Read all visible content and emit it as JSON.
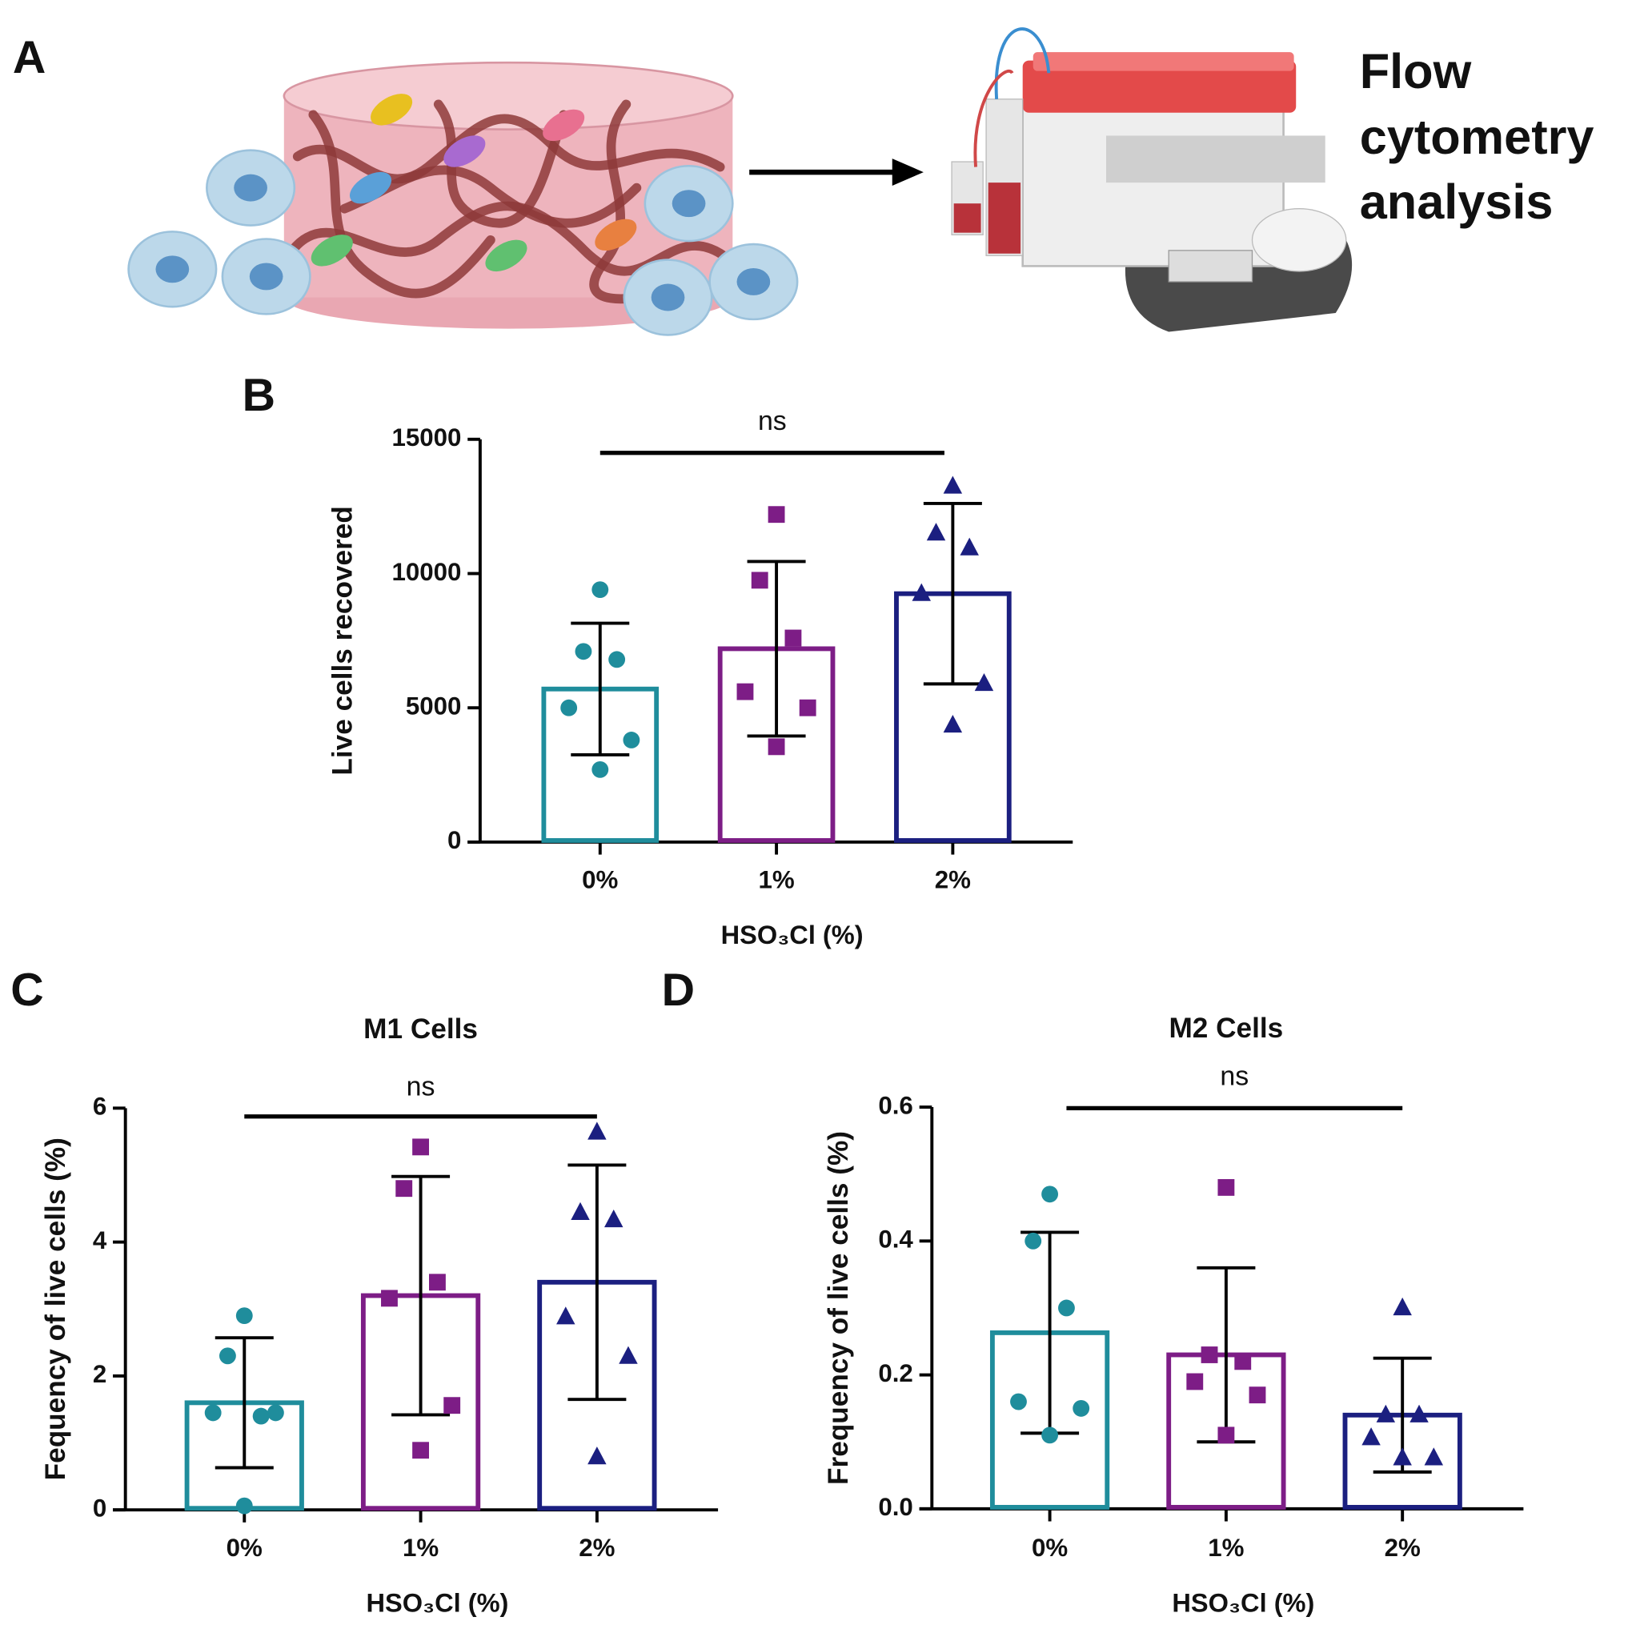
{
  "panel_labels": [
    "A",
    "B",
    "C",
    "D"
  ],
  "panel_a": {
    "caption_lines": [
      "Flow",
      "cytometry",
      "analysis"
    ]
  },
  "chart_data": [
    {
      "type": "bar",
      "categories": [
        "0%",
        "1%",
        "2%"
      ],
      "values": [
        5700,
        7200,
        9250
      ],
      "errors": [
        2450,
        3250,
        3360
      ],
      "points": [
        [
          9400,
          7100,
          6800,
          5000,
          3800,
          2700
        ],
        [
          12200,
          9750,
          7600,
          5600,
          5000,
          3550
        ],
        [
          13250,
          11500,
          10950,
          9250,
          5900,
          4350
        ]
      ],
      "colors": [
        "#1f8d9c",
        "#7d1d86",
        "#1b1f80"
      ],
      "markers": [
        "circle",
        "square",
        "triangle"
      ],
      "ylabel": "Live cells recovered",
      "xlabel": "HSO₃Cl (%)",
      "annotation": "ns",
      "ylim": [
        0,
        15000
      ],
      "yticks": [
        0,
        5000,
        10000,
        15000
      ]
    },
    {
      "type": "bar",
      "title": "M1 Cells",
      "categories": [
        "0%",
        "1%",
        "2%"
      ],
      "values": [
        1.6,
        3.2,
        3.4
      ],
      "errors": [
        0.97,
        1.78,
        1.75
      ],
      "points": [
        [
          2.9,
          2.3,
          1.4,
          1.45,
          1.45,
          0.06
        ],
        [
          5.42,
          4.8,
          3.4,
          3.16,
          1.56,
          0.89
        ],
        [
          5.64,
          4.44,
          4.33,
          2.88,
          2.29,
          0.79
        ]
      ],
      "colors": [
        "#1f8d9c",
        "#7d1d86",
        "#1b1f80"
      ],
      "markers": [
        "circle",
        "square",
        "triangle"
      ],
      "ylabel": "Fequency of live cells (%)",
      "xlabel": "HSO₃Cl (%)",
      "annotation": "ns",
      "ylim": [
        0,
        6
      ],
      "yticks": [
        0,
        2,
        4,
        6
      ]
    },
    {
      "type": "bar",
      "title": "M2 Cells",
      "categories": [
        "0%",
        "1%",
        "2%"
      ],
      "values": [
        0.263,
        0.23,
        0.14
      ],
      "errors": [
        0.15,
        0.13,
        0.085
      ],
      "points": [
        [
          0.47,
          0.4,
          0.3,
          0.16,
          0.15,
          0.11
        ],
        [
          0.48,
          0.23,
          0.22,
          0.19,
          0.17,
          0.11
        ],
        [
          0.3,
          0.14,
          0.14,
          0.106,
          0.076,
          0.076
        ]
      ],
      "colors": [
        "#1f8d9c",
        "#7d1d86",
        "#1b1f80"
      ],
      "markers": [
        "circle",
        "square",
        "triangle"
      ],
      "ylabel": "Frequency of live cells (%)",
      "xlabel": "HSO₃Cl (%)",
      "annotation": "ns",
      "ylim": [
        0,
        0.6
      ],
      "yticks": [
        {
          "value": 0,
          "label": "0.0"
        },
        0.2,
        0.4,
        0.6
      ]
    }
  ]
}
